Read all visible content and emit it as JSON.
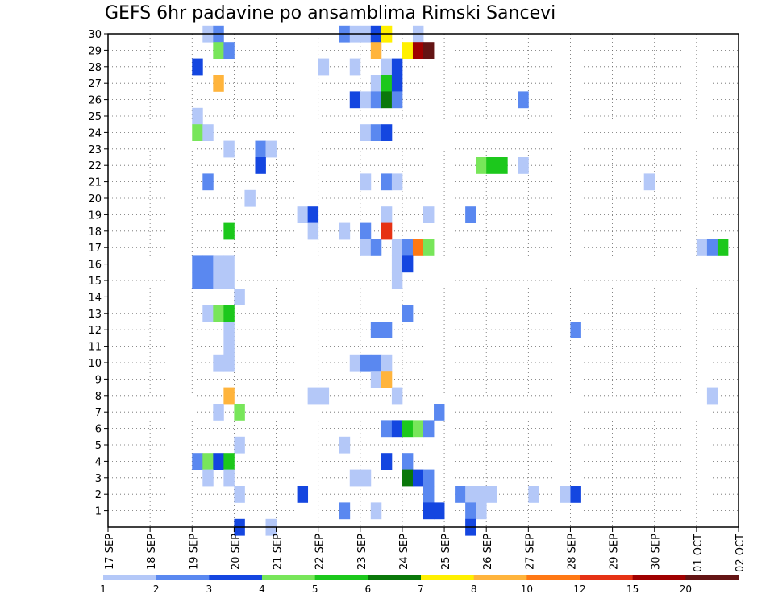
{
  "title": "GEFS 6hr padavine po ansamblima Rimski Sancevi",
  "chart_data": {
    "type": "heatmap",
    "title": "GEFS 6hr padavine po ansamblima Rimski Sancevi",
    "x_tick_labels": [
      "17 SEP",
      "18 SEP",
      "19 SEP",
      "20 SEP",
      "21 SEP",
      "22 SEP",
      "23 SEP",
      "24 SEP",
      "25 SEP",
      "26 SEP",
      "27 SEP",
      "28 SEP",
      "29 SEP",
      "30 SEP",
      "01 OCT",
      "02 OCT"
    ],
    "y_tick_labels": [
      "1",
      "2",
      "3",
      "4",
      "5",
      "6",
      "7",
      "8",
      "9",
      "10",
      "11",
      "12",
      "13",
      "14",
      "15",
      "16",
      "17",
      "18",
      "19",
      "20",
      "21",
      "22",
      "23",
      "24",
      "25",
      "26",
      "27",
      "28",
      "29",
      "30"
    ],
    "x_unit": "6-hour step from 17 SEP 00Z",
    "y_label": "",
    "xlim": [
      0,
      60
    ],
    "ylim": [
      0,
      30
    ],
    "grid": "dotted",
    "colorbar": {
      "labels": [
        "1",
        "2",
        "3",
        "4",
        "5",
        "6",
        "7",
        "8",
        "10",
        "12",
        "15",
        "20"
      ],
      "colors": [
        "#b4c8f8",
        "#5a88f0",
        "#1446e0",
        "#78e65a",
        "#1cc81c",
        "#0a780a",
        "#fff000",
        "#ffb43c",
        "#ff7814",
        "#e63214",
        "#a00000",
        "#641414"
      ]
    },
    "cells": [
      {
        "m": 30,
        "t": 9.5,
        "c": 1
      },
      {
        "m": 30,
        "t": 10.5,
        "c": 2
      },
      {
        "m": 30,
        "t": 22.5,
        "c": 2
      },
      {
        "m": 30,
        "t": 23.5,
        "c": 1
      },
      {
        "m": 30,
        "t": 24.5,
        "c": 1
      },
      {
        "m": 30,
        "t": 25.5,
        "c": 3
      },
      {
        "m": 30,
        "t": 26.5,
        "c": 7
      },
      {
        "m": 30,
        "t": 29.5,
        "c": 1
      },
      {
        "m": 29,
        "t": 10.5,
        "c": 4
      },
      {
        "m": 29,
        "t": 11.5,
        "c": 2
      },
      {
        "m": 29,
        "t": 25.5,
        "c": 8
      },
      {
        "m": 29,
        "t": 28.5,
        "c": 7
      },
      {
        "m": 29,
        "t": 29.5,
        "c": 11
      },
      {
        "m": 29,
        "t": 30.5,
        "c": 12
      },
      {
        "m": 28,
        "t": 8.5,
        "c": 3
      },
      {
        "m": 28,
        "t": 20.5,
        "c": 1
      },
      {
        "m": 28,
        "t": 23.5,
        "c": 1
      },
      {
        "m": 28,
        "t": 26.5,
        "c": 1
      },
      {
        "m": 28,
        "t": 27.5,
        "c": 3
      },
      {
        "m": 27,
        "t": 10.5,
        "c": 8
      },
      {
        "m": 27,
        "t": 25.5,
        "c": 1
      },
      {
        "m": 27,
        "t": 26.5,
        "c": 5
      },
      {
        "m": 27,
        "t": 27.5,
        "c": 3
      },
      {
        "m": 26,
        "t": 23.5,
        "c": 3
      },
      {
        "m": 26,
        "t": 24.5,
        "c": 1
      },
      {
        "m": 26,
        "t": 25.5,
        "c": 2
      },
      {
        "m": 26,
        "t": 26.5,
        "c": 6
      },
      {
        "m": 26,
        "t": 27.5,
        "c": 2
      },
      {
        "m": 26,
        "t": 39.5,
        "c": 2
      },
      {
        "m": 25,
        "t": 8.5,
        "c": 1
      },
      {
        "m": 24,
        "t": 8.5,
        "c": 4
      },
      {
        "m": 24,
        "t": 9.5,
        "c": 1
      },
      {
        "m": 24,
        "t": 24.5,
        "c": 1
      },
      {
        "m": 24,
        "t": 25.5,
        "c": 2
      },
      {
        "m": 24,
        "t": 26.5,
        "c": 3
      },
      {
        "m": 23,
        "t": 11.5,
        "c": 1
      },
      {
        "m": 23,
        "t": 14.5,
        "c": 2
      },
      {
        "m": 23,
        "t": 15.5,
        "c": 1
      },
      {
        "m": 22,
        "t": 14.5,
        "c": 3
      },
      {
        "m": 22,
        "t": 35.5,
        "c": 4
      },
      {
        "m": 22,
        "t": 36.5,
        "c": 5
      },
      {
        "m": 22,
        "t": 37.5,
        "c": 5
      },
      {
        "m": 22,
        "t": 39.5,
        "c": 1
      },
      {
        "m": 21,
        "t": 9.5,
        "c": 2
      },
      {
        "m": 21,
        "t": 24.5,
        "c": 1
      },
      {
        "m": 21,
        "t": 26.5,
        "c": 2
      },
      {
        "m": 21,
        "t": 27.5,
        "c": 1
      },
      {
        "m": 21,
        "t": 51.5,
        "c": 1
      },
      {
        "m": 20,
        "t": 13.5,
        "c": 1
      },
      {
        "m": 19,
        "t": 18.5,
        "c": 1
      },
      {
        "m": 19,
        "t": 19.5,
        "c": 3
      },
      {
        "m": 19,
        "t": 26.5,
        "c": 1
      },
      {
        "m": 19,
        "t": 30.5,
        "c": 1
      },
      {
        "m": 19,
        "t": 34.5,
        "c": 2
      },
      {
        "m": 18,
        "t": 11.5,
        "c": 5
      },
      {
        "m": 18,
        "t": 19.5,
        "c": 1
      },
      {
        "m": 18,
        "t": 22.5,
        "c": 1
      },
      {
        "m": 18,
        "t": 24.5,
        "c": 2
      },
      {
        "m": 18,
        "t": 26.5,
        "c": 10
      },
      {
        "m": 17,
        "t": 24.5,
        "c": 1
      },
      {
        "m": 17,
        "t": 25.5,
        "c": 2
      },
      {
        "m": 17,
        "t": 27.5,
        "c": 1
      },
      {
        "m": 17,
        "t": 28.5,
        "c": 2
      },
      {
        "m": 17,
        "t": 29.5,
        "c": 9
      },
      {
        "m": 17,
        "t": 30.5,
        "c": 4
      },
      {
        "m": 17,
        "t": 56.5,
        "c": 1
      },
      {
        "m": 17,
        "t": 57.5,
        "c": 2
      },
      {
        "m": 17,
        "t": 58.5,
        "c": 5
      },
      {
        "m": 16,
        "t": 8.5,
        "c": 2
      },
      {
        "m": 16,
        "t": 9.5,
        "c": 2
      },
      {
        "m": 16,
        "t": 10.5,
        "c": 1
      },
      {
        "m": 16,
        "t": 11.5,
        "c": 1
      },
      {
        "m": 16,
        "t": 27.5,
        "c": 1
      },
      {
        "m": 16,
        "t": 28.5,
        "c": 3
      },
      {
        "m": 15,
        "t": 8.5,
        "c": 2
      },
      {
        "m": 15,
        "t": 9.5,
        "c": 2
      },
      {
        "m": 15,
        "t": 10.5,
        "c": 1
      },
      {
        "m": 15,
        "t": 11.5,
        "c": 1
      },
      {
        "m": 15,
        "t": 27.5,
        "c": 1
      },
      {
        "m": 14,
        "t": 12.5,
        "c": 1
      },
      {
        "m": 13,
        "t": 9.5,
        "c": 1
      },
      {
        "m": 13,
        "t": 10.5,
        "c": 4
      },
      {
        "m": 13,
        "t": 11.5,
        "c": 5
      },
      {
        "m": 13,
        "t": 28.5,
        "c": 2
      },
      {
        "m": 12,
        "t": 11.5,
        "c": 1
      },
      {
        "m": 12,
        "t": 25.5,
        "c": 2
      },
      {
        "m": 12,
        "t": 26.5,
        "c": 2
      },
      {
        "m": 12,
        "t": 44.5,
        "c": 2
      },
      {
        "m": 11,
        "t": 11.5,
        "c": 1
      },
      {
        "m": 10,
        "t": 10.5,
        "c": 1
      },
      {
        "m": 10,
        "t": 11.5,
        "c": 1
      },
      {
        "m": 10,
        "t": 23.5,
        "c": 1
      },
      {
        "m": 10,
        "t": 24.5,
        "c": 2
      },
      {
        "m": 10,
        "t": 25.5,
        "c": 2
      },
      {
        "m": 10,
        "t": 26.5,
        "c": 1
      },
      {
        "m": 9,
        "t": 25.5,
        "c": 1
      },
      {
        "m": 9,
        "t": 26.5,
        "c": 8
      },
      {
        "m": 8,
        "t": 11.5,
        "c": 8
      },
      {
        "m": 8,
        "t": 19.5,
        "c": 1
      },
      {
        "m": 8,
        "t": 20.5,
        "c": 1
      },
      {
        "m": 8,
        "t": 27.5,
        "c": 1
      },
      {
        "m": 8,
        "t": 57.5,
        "c": 1
      },
      {
        "m": 7,
        "t": 10.5,
        "c": 1
      },
      {
        "m": 7,
        "t": 12.5,
        "c": 4
      },
      {
        "m": 7,
        "t": 31.5,
        "c": 2
      },
      {
        "m": 6,
        "t": 26.5,
        "c": 2
      },
      {
        "m": 6,
        "t": 27.5,
        "c": 3
      },
      {
        "m": 6,
        "t": 28.5,
        "c": 5
      },
      {
        "m": 6,
        "t": 29.5,
        "c": 4
      },
      {
        "m": 6,
        "t": 30.5,
        "c": 2
      },
      {
        "m": 5,
        "t": 12.5,
        "c": 1
      },
      {
        "m": 5,
        "t": 22.5,
        "c": 1
      },
      {
        "m": 4,
        "t": 8.5,
        "c": 2
      },
      {
        "m": 4,
        "t": 9.5,
        "c": 4
      },
      {
        "m": 4,
        "t": 10.5,
        "c": 3
      },
      {
        "m": 4,
        "t": 11.5,
        "c": 5
      },
      {
        "m": 4,
        "t": 26.5,
        "c": 3
      },
      {
        "m": 4,
        "t": 28.5,
        "c": 2
      },
      {
        "m": 3,
        "t": 9.5,
        "c": 1
      },
      {
        "m": 3,
        "t": 11.5,
        "c": 1
      },
      {
        "m": 3,
        "t": 23.5,
        "c": 1
      },
      {
        "m": 3,
        "t": 24.5,
        "c": 1
      },
      {
        "m": 3,
        "t": 28.5,
        "c": 6
      },
      {
        "m": 3,
        "t": 29.5,
        "c": 3
      },
      {
        "m": 3,
        "t": 30.5,
        "c": 2
      },
      {
        "m": 2,
        "t": 12.5,
        "c": 1
      },
      {
        "m": 2,
        "t": 18.5,
        "c": 3
      },
      {
        "m": 2,
        "t": 30.5,
        "c": 2
      },
      {
        "m": 2,
        "t": 33.5,
        "c": 2
      },
      {
        "m": 2,
        "t": 34.5,
        "c": 1
      },
      {
        "m": 2,
        "t": 35.5,
        "c": 1
      },
      {
        "m": 2,
        "t": 36.5,
        "c": 1
      },
      {
        "m": 2,
        "t": 40.5,
        "c": 1
      },
      {
        "m": 2,
        "t": 43.5,
        "c": 1
      },
      {
        "m": 2,
        "t": 44.5,
        "c": 3
      },
      {
        "m": 1,
        "t": 22.5,
        "c": 2
      },
      {
        "m": 1,
        "t": 25.5,
        "c": 1
      },
      {
        "m": 1,
        "t": 30.5,
        "c": 3
      },
      {
        "m": 1,
        "t": 31.5,
        "c": 3
      },
      {
        "m": 1,
        "t": 34.5,
        "c": 2
      },
      {
        "m": 1,
        "t": 35.5,
        "c": 1
      },
      {
        "m": 0,
        "t": 12.5,
        "c": 3
      },
      {
        "m": 0,
        "t": 15.5,
        "c": 1
      },
      {
        "m": 0,
        "t": 34.5,
        "c": 3
      }
    ]
  }
}
